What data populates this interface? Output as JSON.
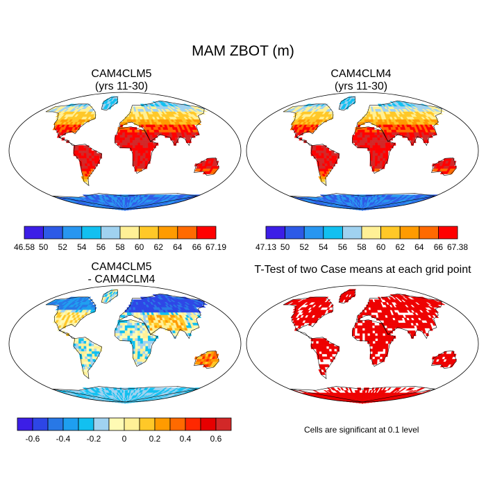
{
  "figure": {
    "title": "MAM ZBOT (m)"
  },
  "panels": [
    {
      "title_line1": "CAM4CLM5",
      "title_line2": "(yrs 11-30)",
      "colorbar": {
        "labels": [
          "46.58",
          "50",
          "52",
          "54",
          "56",
          "58",
          "60",
          "62",
          "64",
          "66",
          "67.19"
        ]
      }
    },
    {
      "title_line1": "CAM4CLM4",
      "title_line2": "(yrs 11-30)",
      "colorbar": {
        "labels": [
          "47.13",
          "50",
          "52",
          "54",
          "56",
          "58",
          "60",
          "62",
          "64",
          "66",
          "67.38"
        ]
      }
    },
    {
      "title_line1": "CAM4CLM5",
      "title_line2": "- CAM4CLM4",
      "colorbar": {
        "labels": [
          "-0.6",
          "-0.4",
          "-0.2",
          "0",
          "0.2",
          "0.4",
          "0.6"
        ]
      }
    },
    {
      "title_line1": "T-Test of two Case means at each grid point",
      "note": "Cells are significant at 0.1 level"
    }
  ],
  "palettes": {
    "abs": [
      "#3c1ee6",
      "#2d5ae6",
      "#2896f0",
      "#12c0f0",
      "#a0d2f0",
      "#fff096",
      "#ffc828",
      "#ff9b00",
      "#ff6a00",
      "#ff0000",
      "#d22828"
    ],
    "diff": [
      "#3c1ee6",
      "#2d46e6",
      "#2878e6",
      "#1e9ff0",
      "#12c0f0",
      "#a0d2f0",
      "#fffab4",
      "#fff096",
      "#ffc828",
      "#ff9b00",
      "#ff6a00",
      "#ff2800",
      "#e60000",
      "#d22828"
    ],
    "ttest": "#ee0000"
  }
}
